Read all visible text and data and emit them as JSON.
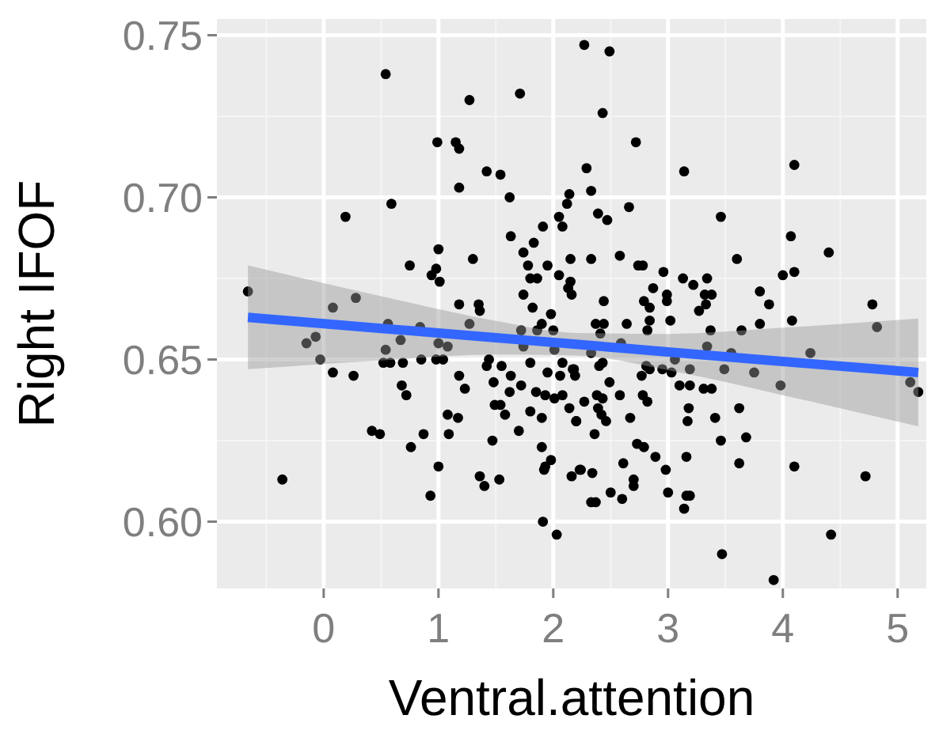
{
  "chart_data": {
    "type": "scatter",
    "xlabel": "Ventral.attention",
    "ylabel": "Right IFOF",
    "xlim": [
      -0.93,
      5.25
    ],
    "ylim": [
      0.5794,
      0.755
    ],
    "xticks": [
      0,
      1,
      2,
      3,
      4,
      5
    ],
    "yticks": [
      {
        "value": 0.6,
        "label": "0.60"
      },
      {
        "value": 0.65,
        "label": "0.65"
      },
      {
        "value": 0.7,
        "label": "0.70"
      },
      {
        "value": 0.75,
        "label": "0.75"
      }
    ],
    "grid": true,
    "series": [
      {
        "marker": "circle",
        "color": "#000000",
        "x": [
          0.54,
          1.27,
          1.71,
          0.99,
          1.15,
          1.18,
          1.42,
          1.54,
          1.18,
          1.62,
          2.14,
          2.12,
          2.05,
          2.08,
          1.91,
          0.59,
          0.19,
          1.63,
          1.83,
          1.74,
          1.0,
          1.3,
          0.75,
          0.98,
          0.94,
          1.01,
          1.78,
          1.95,
          1.8,
          1.86,
          2.05,
          2.15,
          2.15,
          1.74,
          -0.66,
          0.28,
          0.08,
          1.18,
          1.35,
          1.82,
          2.13,
          2.27,
          2.49,
          2.43,
          2.72,
          2.29,
          3.14,
          4.1,
          2.33,
          2.66,
          2.39,
          2.47,
          3.46,
          4.07,
          4.4,
          2.58,
          2.33,
          2.74,
          2.78,
          3.6,
          2.96,
          3.13,
          3.22,
          3.34,
          4.1,
          4.0,
          2.87,
          2.99,
          2.99,
          3.32,
          3.38,
          3.8,
          2.16,
          2.44,
          2.79,
          2.84,
          3.88,
          4.78,
          -0.15,
          -0.07,
          -0.03,
          0.08,
          0.26,
          -0.36,
          0.56,
          0.54,
          0.67,
          0.52,
          0.58,
          0.69,
          0.84,
          1.0,
          1.08,
          0.85,
          0.98,
          1.04,
          0.68,
          0.72,
          1.18,
          1.23,
          1.08,
          1.17,
          0.42,
          0.49,
          0.87,
          0.76,
          1.09,
          1.0,
          0.93,
          1.36,
          1.4,
          1.53,
          1.47,
          1.27,
          1.36,
          1.98,
          1.72,
          1.86,
          1.9,
          2.0,
          1.74,
          2.01,
          1.44,
          1.42,
          1.55,
          1.8,
          2.08,
          1.48,
          1.63,
          1.72,
          1.95,
          2.06,
          2.17,
          1.62,
          1.85,
          1.93,
          2.01,
          2.08,
          1.49,
          1.54,
          1.58,
          1.8,
          1.9,
          2.14,
          2.2,
          1.7,
          1.9,
          1.98,
          1.92,
          1.93,
          2.16,
          2.23,
          1.91,
          2.03,
          2.37,
          2.44,
          2.64,
          2.84,
          3.02,
          3.27,
          3.33,
          4.08,
          4.82,
          3.37,
          3.64,
          3.8,
          2.82,
          2.41,
          2.59,
          2.33,
          3.34,
          4.24,
          3.06,
          3.55,
          2.4,
          2.43,
          2.81,
          2.84,
          2.95,
          3.03,
          3.19,
          3.49,
          3.75,
          2.18,
          2.19,
          2.77,
          2.49,
          3.1,
          3.19,
          3.31,
          3.38,
          3.98,
          5.11,
          5.18,
          2.27,
          2.38,
          2.43,
          2.58,
          2.78,
          2.82,
          2.39,
          2.42,
          2.46,
          2.2,
          2.67,
          3.18,
          3.17,
          3.41,
          3.62,
          2.36,
          2.73,
          2.79,
          3.46,
          3.68,
          2.89,
          3.16,
          2.61,
          2.98,
          3.62,
          4.1,
          4.72,
          2.24,
          2.34,
          2.7,
          2.7,
          2.5,
          2.6,
          2.33,
          2.37,
          3.0,
          3.16,
          3.19,
          3.14,
          4.42,
          3.47,
          3.92
        ],
        "values": [
          0.738,
          0.73,
          0.732,
          0.717,
          0.717,
          0.715,
          0.708,
          0.707,
          0.703,
          0.7,
          0.701,
          0.698,
          0.694,
          0.691,
          0.691,
          0.698,
          0.694,
          0.688,
          0.686,
          0.683,
          0.684,
          0.681,
          0.679,
          0.678,
          0.676,
          0.674,
          0.679,
          0.679,
          0.675,
          0.675,
          0.676,
          0.681,
          0.674,
          0.67,
          0.671,
          0.669,
          0.666,
          0.667,
          0.667,
          0.666,
          0.672,
          0.747,
          0.745,
          0.726,
          0.717,
          0.709,
          0.708,
          0.71,
          0.702,
          0.697,
          0.695,
          0.693,
          0.694,
          0.688,
          0.683,
          0.682,
          0.681,
          0.679,
          0.679,
          0.681,
          0.677,
          0.675,
          0.673,
          0.675,
          0.677,
          0.676,
          0.672,
          0.67,
          0.668,
          0.67,
          0.67,
          0.671,
          0.67,
          0.668,
          0.668,
          0.666,
          0.667,
          0.667,
          0.655,
          0.657,
          0.65,
          0.646,
          0.645,
          0.613,
          0.661,
          0.653,
          0.656,
          0.649,
          0.649,
          0.649,
          0.66,
          0.655,
          0.654,
          0.65,
          0.65,
          0.65,
          0.642,
          0.639,
          0.645,
          0.641,
          0.633,
          0.632,
          0.628,
          0.627,
          0.627,
          0.623,
          0.627,
          0.617,
          0.608,
          0.614,
          0.611,
          0.613,
          0.625,
          0.661,
          0.665,
          0.664,
          0.659,
          0.659,
          0.661,
          0.659,
          0.654,
          0.653,
          0.65,
          0.648,
          0.648,
          0.649,
          0.649,
          0.643,
          0.645,
          0.642,
          0.646,
          0.645,
          0.647,
          0.64,
          0.64,
          0.639,
          0.638,
          0.639,
          0.636,
          0.636,
          0.633,
          0.634,
          0.632,
          0.635,
          0.631,
          0.628,
          0.623,
          0.619,
          0.616,
          0.617,
          0.614,
          0.616,
          0.6,
          0.596,
          0.661,
          0.661,
          0.661,
          0.662,
          0.662,
          0.665,
          0.667,
          0.662,
          0.66,
          0.659,
          0.659,
          0.661,
          0.659,
          0.658,
          0.655,
          0.652,
          0.654,
          0.652,
          0.65,
          0.652,
          0.648,
          0.649,
          0.648,
          0.647,
          0.647,
          0.646,
          0.647,
          0.647,
          0.646,
          0.647,
          0.645,
          0.645,
          0.643,
          0.642,
          0.642,
          0.641,
          0.641,
          0.642,
          0.643,
          0.64,
          0.637,
          0.639,
          0.638,
          0.639,
          0.639,
          0.637,
          0.635,
          0.633,
          0.631,
          0.631,
          0.632,
          0.635,
          0.631,
          0.632,
          0.635,
          0.627,
          0.624,
          0.623,
          0.625,
          0.626,
          0.62,
          0.62,
          0.618,
          0.616,
          0.618,
          0.617,
          0.614,
          0.616,
          0.615,
          0.613,
          0.611,
          0.609,
          0.607,
          0.606,
          0.606,
          0.609,
          0.608,
          0.608,
          0.604,
          0.596,
          0.59,
          0.582
        ]
      },
      {
        "type": "line",
        "color": "#3366ff",
        "x": [
          -0.66,
          0.5,
          1.5,
          2.2,
          3,
          4,
          5.18
        ],
        "values": [
          0.663,
          0.6596,
          0.6567,
          0.6547,
          0.6523,
          0.6494,
          0.646
        ],
        "lower": [
          0.647,
          0.6497,
          0.6515,
          0.6512,
          0.6467,
          0.639,
          0.6294
        ],
        "upper": [
          0.679,
          0.6695,
          0.6619,
          0.6582,
          0.6579,
          0.6598,
          0.6626
        ]
      }
    ]
  }
}
